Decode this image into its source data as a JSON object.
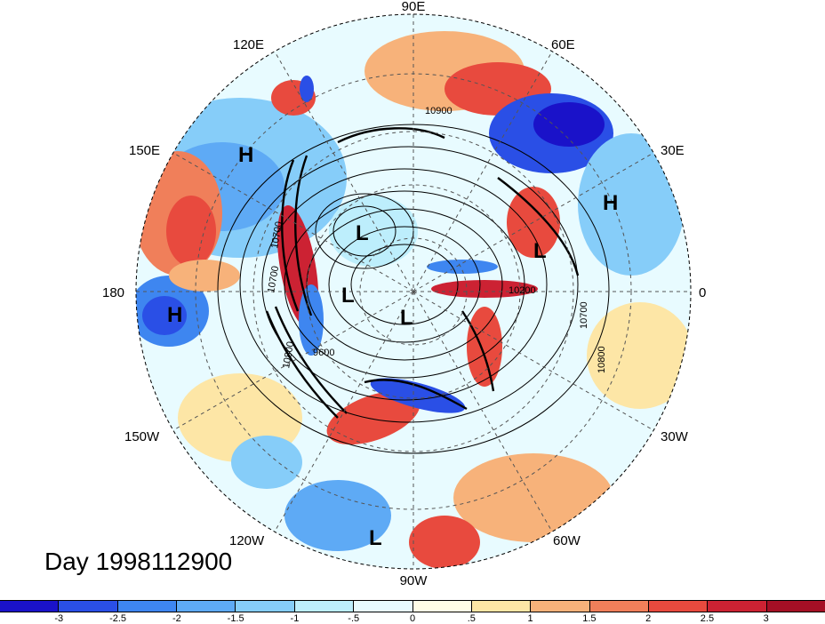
{
  "map": {
    "longitude_labels": [
      "90E",
      "60E",
      "30E",
      "0",
      "30W",
      "60W",
      "90W",
      "120W",
      "150W",
      "180",
      "150E",
      "120E"
    ],
    "pressure_markers": [
      {
        "letter": "H",
        "near": "150E"
      },
      {
        "letter": "H",
        "near": "30E"
      },
      {
        "letter": "H",
        "near": "180"
      },
      {
        "letter": "L",
        "near": "north-pacific-arctic"
      },
      {
        "letter": "L",
        "near": "europe"
      },
      {
        "letter": "L",
        "near": "arctic-180"
      },
      {
        "letter": "L",
        "near": "pole"
      },
      {
        "letter": "L",
        "near": "90W"
      }
    ],
    "contour_labels": [
      "10900",
      "10700",
      "10700",
      "10800",
      "9600",
      "10200",
      "10700",
      "10800"
    ]
  },
  "day_label": "Day 1998112900",
  "colorbar": {
    "colors": [
      "#1a12c9",
      "#2a4fe6",
      "#3e86f0",
      "#5eaaf5",
      "#86cdf9",
      "#bdeefc",
      "#e8fbff",
      "#fffde6",
      "#fde6a6",
      "#f7b27a",
      "#f07f5a",
      "#e84a3e",
      "#cc2233",
      "#a50f25"
    ],
    "tick_labels": [
      "-3",
      "-2.5",
      "-2",
      "-1.5",
      "-1",
      "-.5",
      "0",
      ".5",
      "1",
      "1.5",
      "2",
      "2.5",
      "3"
    ]
  }
}
